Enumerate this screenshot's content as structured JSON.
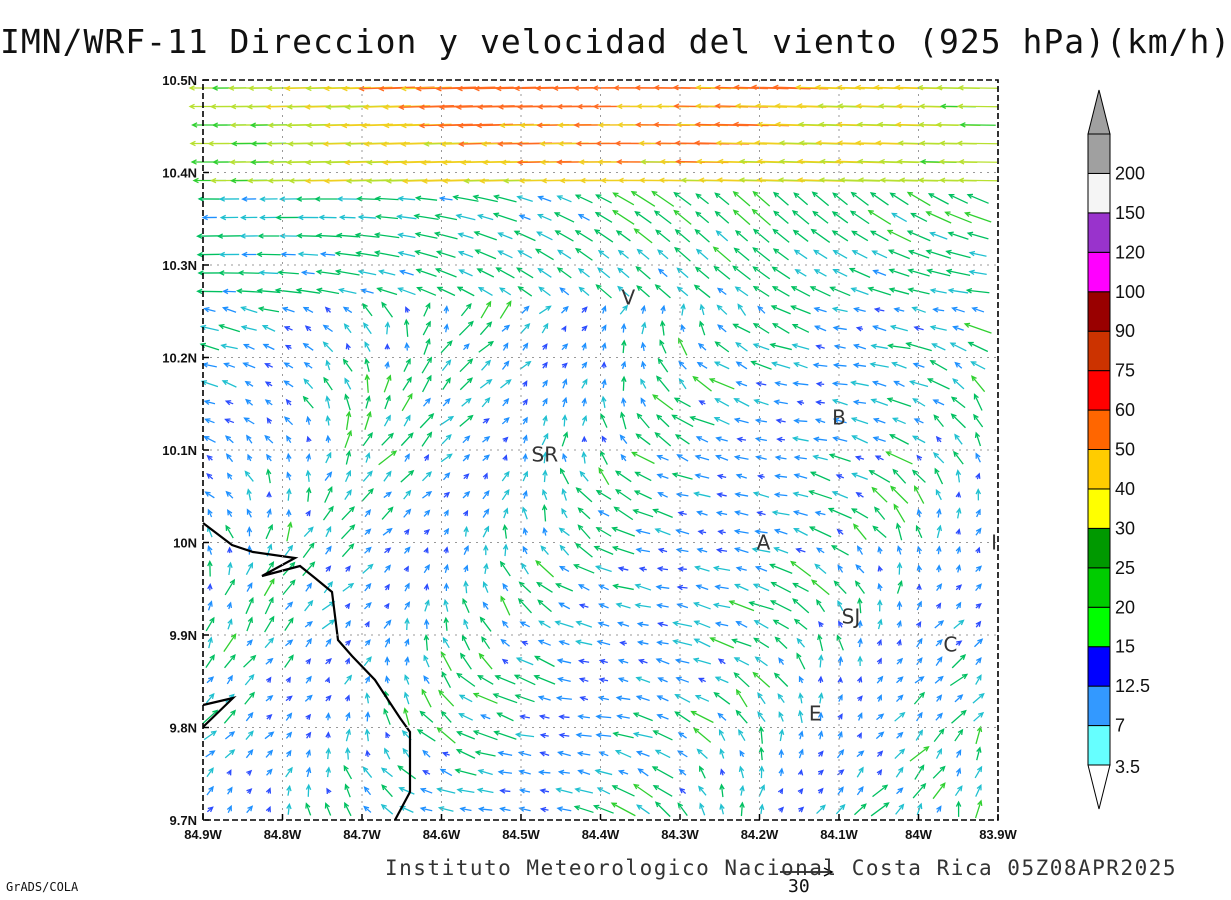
{
  "title": "IMN/WRF-11 Direccion y velocidad del viento (925 hPa)(km/h)",
  "footer": "Instituto Meteorologico Nacional Costa Rica 05Z08APR2025",
  "software_label": "GrADS/COLA",
  "reference_vector_label": "30",
  "axes": {
    "x_ticks": [
      "84.9W",
      "84.8W",
      "84.7W",
      "84.6W",
      "84.5W",
      "84.4W",
      "84.3W",
      "84.2W",
      "84.1W",
      "84W",
      "83.9W"
    ],
    "y_ticks": [
      "10.5N",
      "10.4N",
      "10.3N",
      "10.2N",
      "10.1N",
      "10N",
      "9.9N",
      "9.8N",
      "9.7N"
    ],
    "x_range": [
      -84.9,
      -83.9
    ],
    "y_range": [
      9.7,
      10.5
    ],
    "grid": true
  },
  "cities": [
    {
      "label": "V",
      "lon": -84.365,
      "lat": 10.265
    },
    {
      "label": "SR",
      "lon": -84.47,
      "lat": 10.095
    },
    {
      "label": "B",
      "lon": -84.1,
      "lat": 10.135
    },
    {
      "label": "A",
      "lon": -84.195,
      "lat": 10.0
    },
    {
      "label": "I",
      "lon": -83.905,
      "lat": 10.0
    },
    {
      "label": "SJ",
      "lon": -84.085,
      "lat": 9.92
    },
    {
      "label": "C",
      "lon": -83.96,
      "lat": 9.89
    },
    {
      "label": "E",
      "lon": -84.13,
      "lat": 9.815
    }
  ],
  "colorbar": {
    "labels": [
      "3.5",
      "7",
      "12.5",
      "15",
      "20",
      "25",
      "30",
      "40",
      "50",
      "60",
      "75",
      "90",
      "100",
      "120",
      "150",
      "200"
    ],
    "colors": [
      "#66ffff",
      "#3399ff",
      "#0000ff",
      "#00ff00",
      "#00cc00",
      "#009900",
      "#ffff00",
      "#ffcc00",
      "#ff6600",
      "#ff0000",
      "#cc3300",
      "#990000",
      "#ff00ff",
      "#9933cc",
      "#f5f5f5",
      "#a0a0a0"
    ]
  },
  "legend_title": "",
  "wind_field_source": "grid of wind vectors at 925 hPa, colored by speed"
}
